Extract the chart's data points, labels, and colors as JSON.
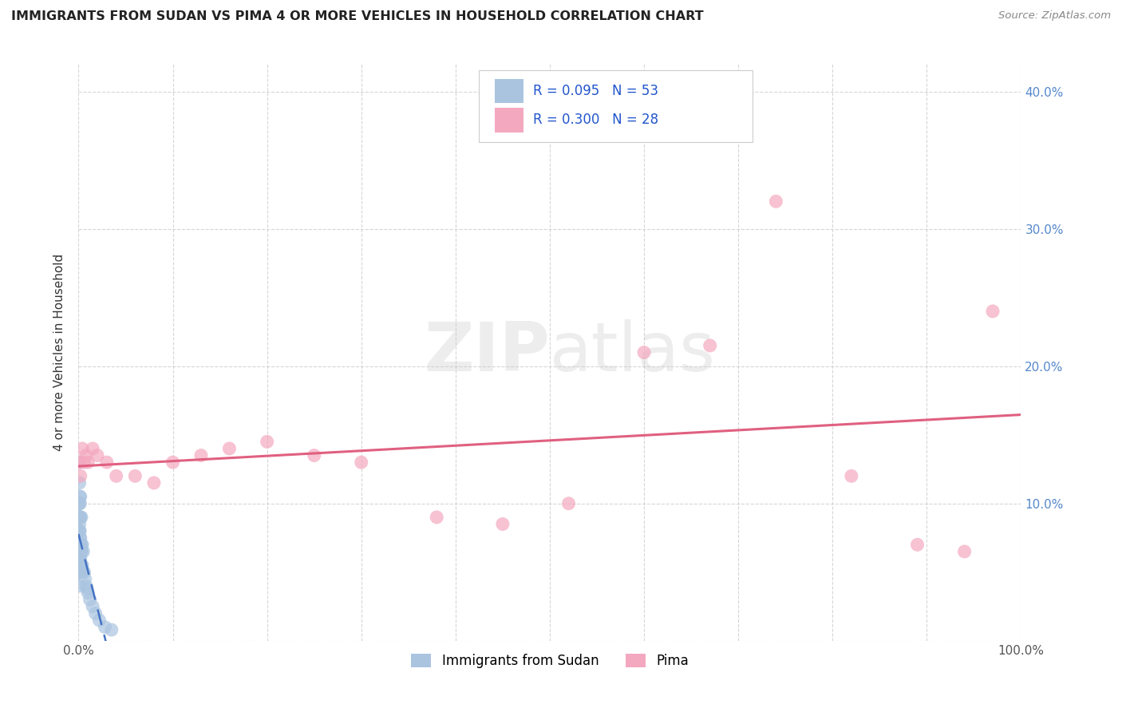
{
  "title": "IMMIGRANTS FROM SUDAN VS PIMA 4 OR MORE VEHICLES IN HOUSEHOLD CORRELATION CHART",
  "source_text": "Source: ZipAtlas.com",
  "ylabel": "4 or more Vehicles in Household",
  "xlim": [
    0.0,
    1.0
  ],
  "ylim": [
    0.0,
    0.42
  ],
  "xticks": [
    0.0,
    0.1,
    0.2,
    0.3,
    0.4,
    0.5,
    0.6,
    0.7,
    0.8,
    0.9,
    1.0
  ],
  "xtick_labels": [
    "0.0%",
    "",
    "",
    "",
    "",
    "",
    "",
    "",
    "",
    "",
    "100.0%"
  ],
  "yticks": [
    0.0,
    0.1,
    0.2,
    0.3,
    0.4
  ],
  "ytick_labels_right": [
    "",
    "10.0%",
    "20.0%",
    "30.0%",
    "40.0%"
  ],
  "watermark_text": "ZIPatlas",
  "legend_r1": "R = 0.095",
  "legend_n1": "N = 53",
  "legend_r2": "R = 0.300",
  "legend_n2": "N = 28",
  "series1_color": "#aac4e0",
  "series2_color": "#f4a8c0",
  "trendline1_color": "#4472c4",
  "trendline2_color": "#e06080",
  "legend1_label": "Immigrants from Sudan",
  "legend2_label": "Pima",
  "series1_x": [
    0.0005,
    0.0005,
    0.0005,
    0.0006,
    0.0006,
    0.0007,
    0.0007,
    0.0008,
    0.0008,
    0.0008,
    0.0009,
    0.0009,
    0.001,
    0.001,
    0.001,
    0.001,
    0.001,
    0.001,
    0.0012,
    0.0012,
    0.0013,
    0.0013,
    0.0015,
    0.0015,
    0.0015,
    0.0016,
    0.0017,
    0.0018,
    0.002,
    0.002,
    0.002,
    0.002,
    0.0022,
    0.0025,
    0.003,
    0.003,
    0.003,
    0.0035,
    0.004,
    0.004,
    0.005,
    0.005,
    0.006,
    0.007,
    0.008,
    0.009,
    0.01,
    0.012,
    0.015,
    0.018,
    0.022,
    0.028,
    0.035
  ],
  "series1_y": [
    0.04,
    0.06,
    0.07,
    0.05,
    0.08,
    0.06,
    0.09,
    0.05,
    0.07,
    0.1,
    0.06,
    0.08,
    0.055,
    0.07,
    0.085,
    0.1,
    0.115,
    0.13,
    0.06,
    0.09,
    0.07,
    0.105,
    0.065,
    0.08,
    0.1,
    0.075,
    0.09,
    0.065,
    0.06,
    0.075,
    0.09,
    0.105,
    0.07,
    0.065,
    0.055,
    0.07,
    0.09,
    0.065,
    0.055,
    0.07,
    0.05,
    0.065,
    0.05,
    0.045,
    0.04,
    0.038,
    0.035,
    0.03,
    0.025,
    0.02,
    0.015,
    0.01,
    0.008
  ],
  "series2_x": [
    0.001,
    0.002,
    0.004,
    0.006,
    0.008,
    0.01,
    0.015,
    0.02,
    0.03,
    0.04,
    0.06,
    0.08,
    0.1,
    0.13,
    0.16,
    0.2,
    0.25,
    0.3,
    0.38,
    0.45,
    0.52,
    0.6,
    0.67,
    0.74,
    0.82,
    0.89,
    0.94,
    0.97
  ],
  "series2_y": [
    0.13,
    0.12,
    0.14,
    0.13,
    0.135,
    0.13,
    0.14,
    0.135,
    0.13,
    0.12,
    0.12,
    0.115,
    0.13,
    0.135,
    0.14,
    0.145,
    0.135,
    0.13,
    0.09,
    0.085,
    0.1,
    0.21,
    0.215,
    0.32,
    0.12,
    0.07,
    0.065,
    0.24
  ],
  "trendline1_x0": 0.0,
  "trendline1_x1": 1.0,
  "trendline2_x0": 0.0,
  "trendline2_x1": 1.0
}
